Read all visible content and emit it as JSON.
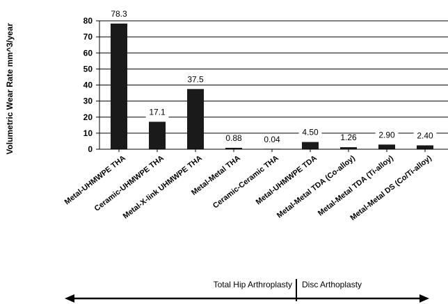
{
  "chart_data": {
    "type": "bar",
    "ylabel": "Volumetric Wear Rate mm^3/year",
    "xlabel": "",
    "title": "",
    "ylim": [
      0,
      80
    ],
    "yticks": [
      0,
      10,
      20,
      30,
      40,
      50,
      60,
      70,
      80
    ],
    "grid": true,
    "categories": [
      "Metal-UHMWPE THA",
      "Ceramic-UHMWPE THA",
      "Metal-X-link UHMWPE THA",
      "Metal-Metal THA",
      "Ceramic-Ceramic THA",
      "Metal-UHMWPE TDA",
      "Metal-Metal TDA (Co-alloy)",
      "Metal-Metal TDA (Ti-alloy)",
      "Metal-Metal DS (Co/Ti-alloy)"
    ],
    "values": [
      78.3,
      17.1,
      37.5,
      0.88,
      0.04,
      4.5,
      1.26,
      2.9,
      2.4
    ],
    "data_labels": [
      "78.3",
      "17.1",
      "37.5",
      "0.88",
      "0.04",
      "4.50",
      "1.26",
      "2.90",
      "2.40"
    ],
    "bar_color": "#1a1a1a"
  },
  "bottom_axis": {
    "left_label": "Total Hip Arthroplasty",
    "right_label": "Disc Arthoplasty"
  }
}
